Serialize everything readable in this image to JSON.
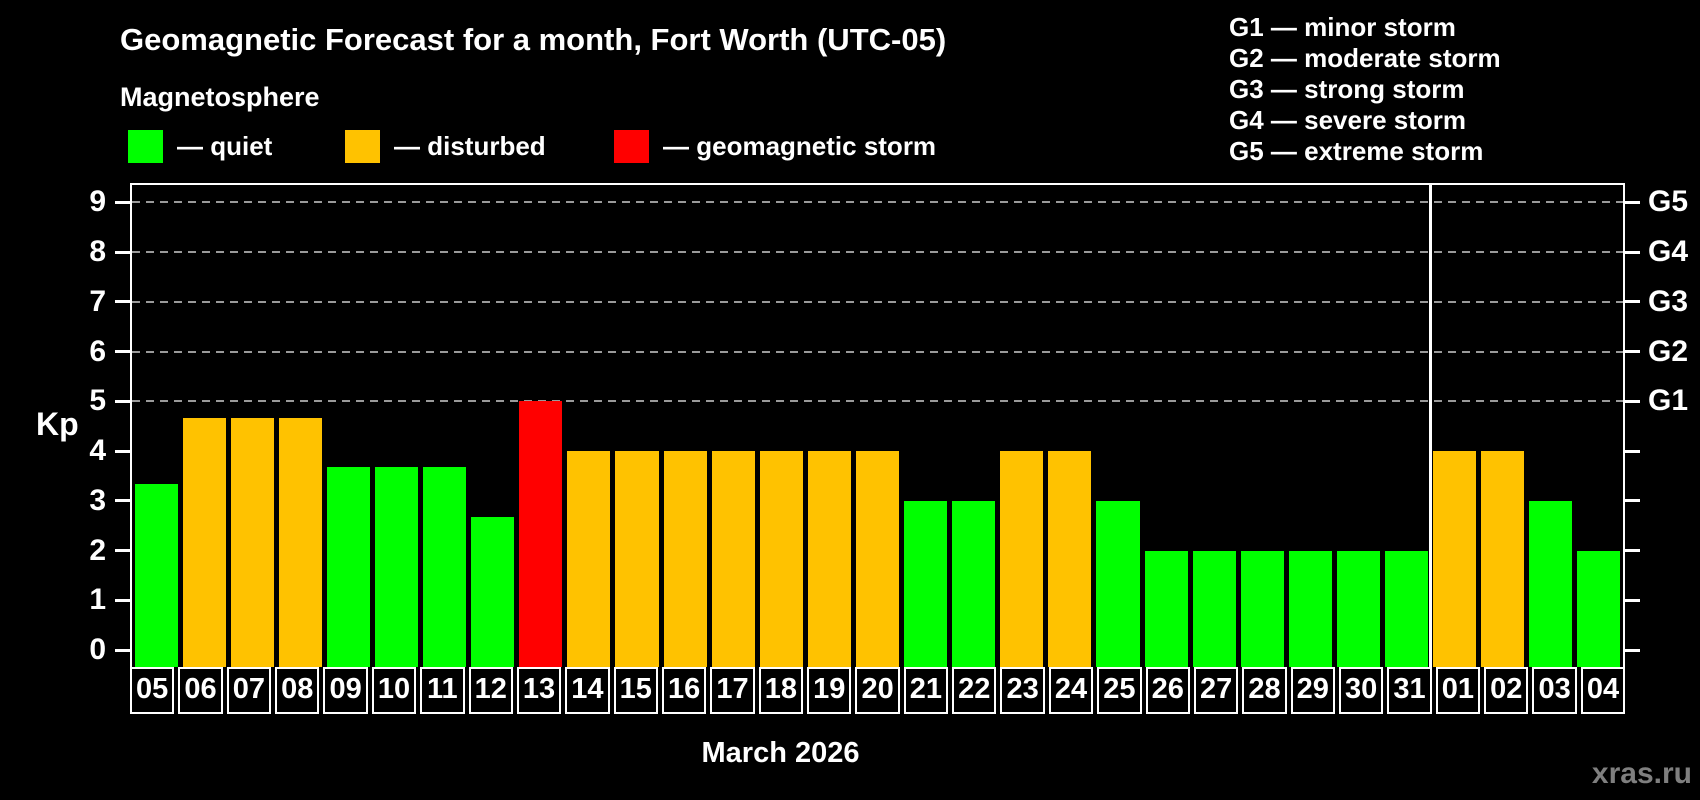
{
  "title": "Geomagnetic Forecast for a month, Fort Worth (UTC-05)",
  "subtitle": "Magnetosphere",
  "legend": {
    "items": [
      {
        "status": "quiet",
        "label": "— quiet"
      },
      {
        "status": "disturbed",
        "label": "— disturbed"
      },
      {
        "status": "storm",
        "label": "— geomagnetic storm"
      }
    ]
  },
  "storm_scale_legend": {
    "items": [
      {
        "code": "G1",
        "label": "G1 — minor storm",
        "kp": 5
      },
      {
        "code": "G2",
        "label": "G2 — moderate storm",
        "kp": 6
      },
      {
        "code": "G3",
        "label": "G3 — strong storm",
        "kp": 7
      },
      {
        "code": "G4",
        "label": "G4 — severe storm",
        "kp": 8
      },
      {
        "code": "G5",
        "label": "G5 — extreme storm",
        "kp": 9
      }
    ]
  },
  "axis": {
    "y_label": "Kp",
    "y_tick_labels": [
      "0",
      "1",
      "2",
      "3",
      "4",
      "5",
      "6",
      "7",
      "8",
      "9"
    ]
  },
  "x_axis": {
    "month_label": "March 2026"
  },
  "watermark": "xras.ru",
  "colors": {
    "quiet": "#00FF00",
    "disturbed": "#FFC200",
    "storm": "#FF0000",
    "background": "#000000",
    "frame": "#FFFFFF",
    "gridline": "#9A9A9A",
    "watermark": "#7F7F7F"
  },
  "chart_data": {
    "type": "bar",
    "title": "Geomagnetic Forecast for a month, Fort Worth (UTC-05)",
    "xlabel": "March 2026",
    "ylabel": "Kp",
    "ylim": [
      0,
      9
    ],
    "grid_dashed_at_kp": [
      5,
      6,
      7,
      8,
      9
    ],
    "right_axis_labels": {
      "G1": 5,
      "G2": 6,
      "G3": 7,
      "G4": 8,
      "G5": 9
    },
    "month_separator_after": 27,
    "categories": [
      "05",
      "06",
      "07",
      "08",
      "09",
      "10",
      "11",
      "12",
      "13",
      "14",
      "15",
      "16",
      "17",
      "18",
      "19",
      "20",
      "21",
      "22",
      "23",
      "24",
      "25",
      "26",
      "27",
      "28",
      "29",
      "30",
      "31",
      "01",
      "02",
      "03",
      "04"
    ],
    "values": [
      3.33,
      4.67,
      4.67,
      4.67,
      3.67,
      3.67,
      3.67,
      2.67,
      5,
      4,
      4,
      4,
      4,
      4,
      4,
      4,
      3,
      3,
      4,
      4,
      3,
      2,
      2,
      2,
      2,
      2,
      2,
      4,
      4,
      3,
      2
    ],
    "status": [
      "quiet",
      "disturbed",
      "disturbed",
      "disturbed",
      "quiet",
      "quiet",
      "quiet",
      "quiet",
      "storm",
      "disturbed",
      "disturbed",
      "disturbed",
      "disturbed",
      "disturbed",
      "disturbed",
      "disturbed",
      "quiet",
      "quiet",
      "disturbed",
      "disturbed",
      "quiet",
      "quiet",
      "quiet",
      "quiet",
      "quiet",
      "quiet",
      "quiet",
      "disturbed",
      "disturbed",
      "quiet",
      "quiet"
    ]
  }
}
